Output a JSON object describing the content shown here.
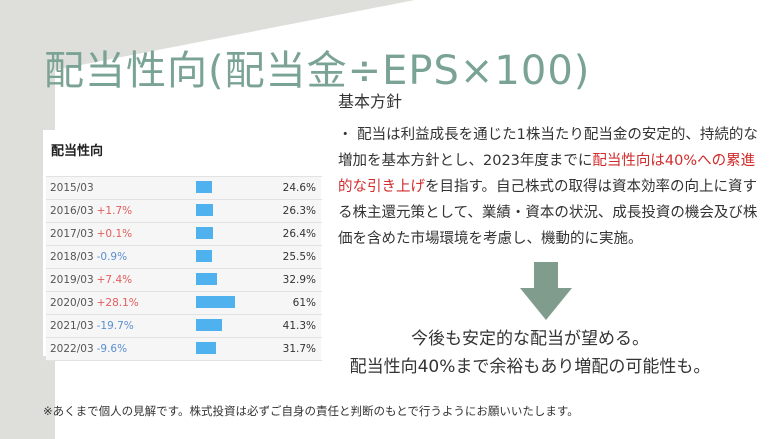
{
  "title": "配当性向(配当金÷EPS×100)",
  "policy": {
    "heading": "基本方針",
    "text_before": "・ 配当は利益成長を通じた1株当たり配当金の安定的、持続的な増加を基本方針とし、2023年度までに",
    "text_highlight": "配当性向は40%への累進的な引き上げ",
    "text_after": "を目指す。自己株式の取得は資本効率の向上に資する株主還元策として、業績・資本の状況、成長投資の機会及び株価を含めた市場環境を考慮し、機動的に実施。"
  },
  "table": {
    "title": "配当性向",
    "rows": [
      {
        "year": "2015/03",
        "change": "",
        "value": "24.6%"
      },
      {
        "year": "2016/03",
        "change": "+1.7%",
        "value": "26.3%"
      },
      {
        "year": "2017/03",
        "change": "+0.1%",
        "value": "26.4%"
      },
      {
        "year": "2018/03",
        "change": "-0.9%",
        "value": "25.5%"
      },
      {
        "year": "2019/03",
        "change": "+7.4%",
        "value": "32.9%"
      },
      {
        "year": "2020/03",
        "change": "+28.1%",
        "value": "61%"
      },
      {
        "year": "2021/03",
        "change": "-19.7%",
        "value": "41.3%"
      },
      {
        "year": "2022/03",
        "change": "-9.6%",
        "value": "31.7%"
      }
    ],
    "bar_values": [
      24.6,
      26.3,
      26.4,
      25.5,
      32.9,
      61,
      41.3,
      31.7
    ],
    "positive_color": "#e25c5c",
    "negative_color": "#5a8fd0",
    "bar_color": "#4fb1ee"
  },
  "conclusion": {
    "line1": "今後も安定的な配当が望める。",
    "line2": "配当性向40%まで余裕もあり増配の可能性も。"
  },
  "footnote": "※あくまで個人の見解です。株式投資は必ずご自身の責任と判断のもとで行うようにお願いいたします。",
  "arrow_icon": "down-arrow-icon",
  "arrow_color": "#7f9c8c",
  "title_color": "#7aa396"
}
